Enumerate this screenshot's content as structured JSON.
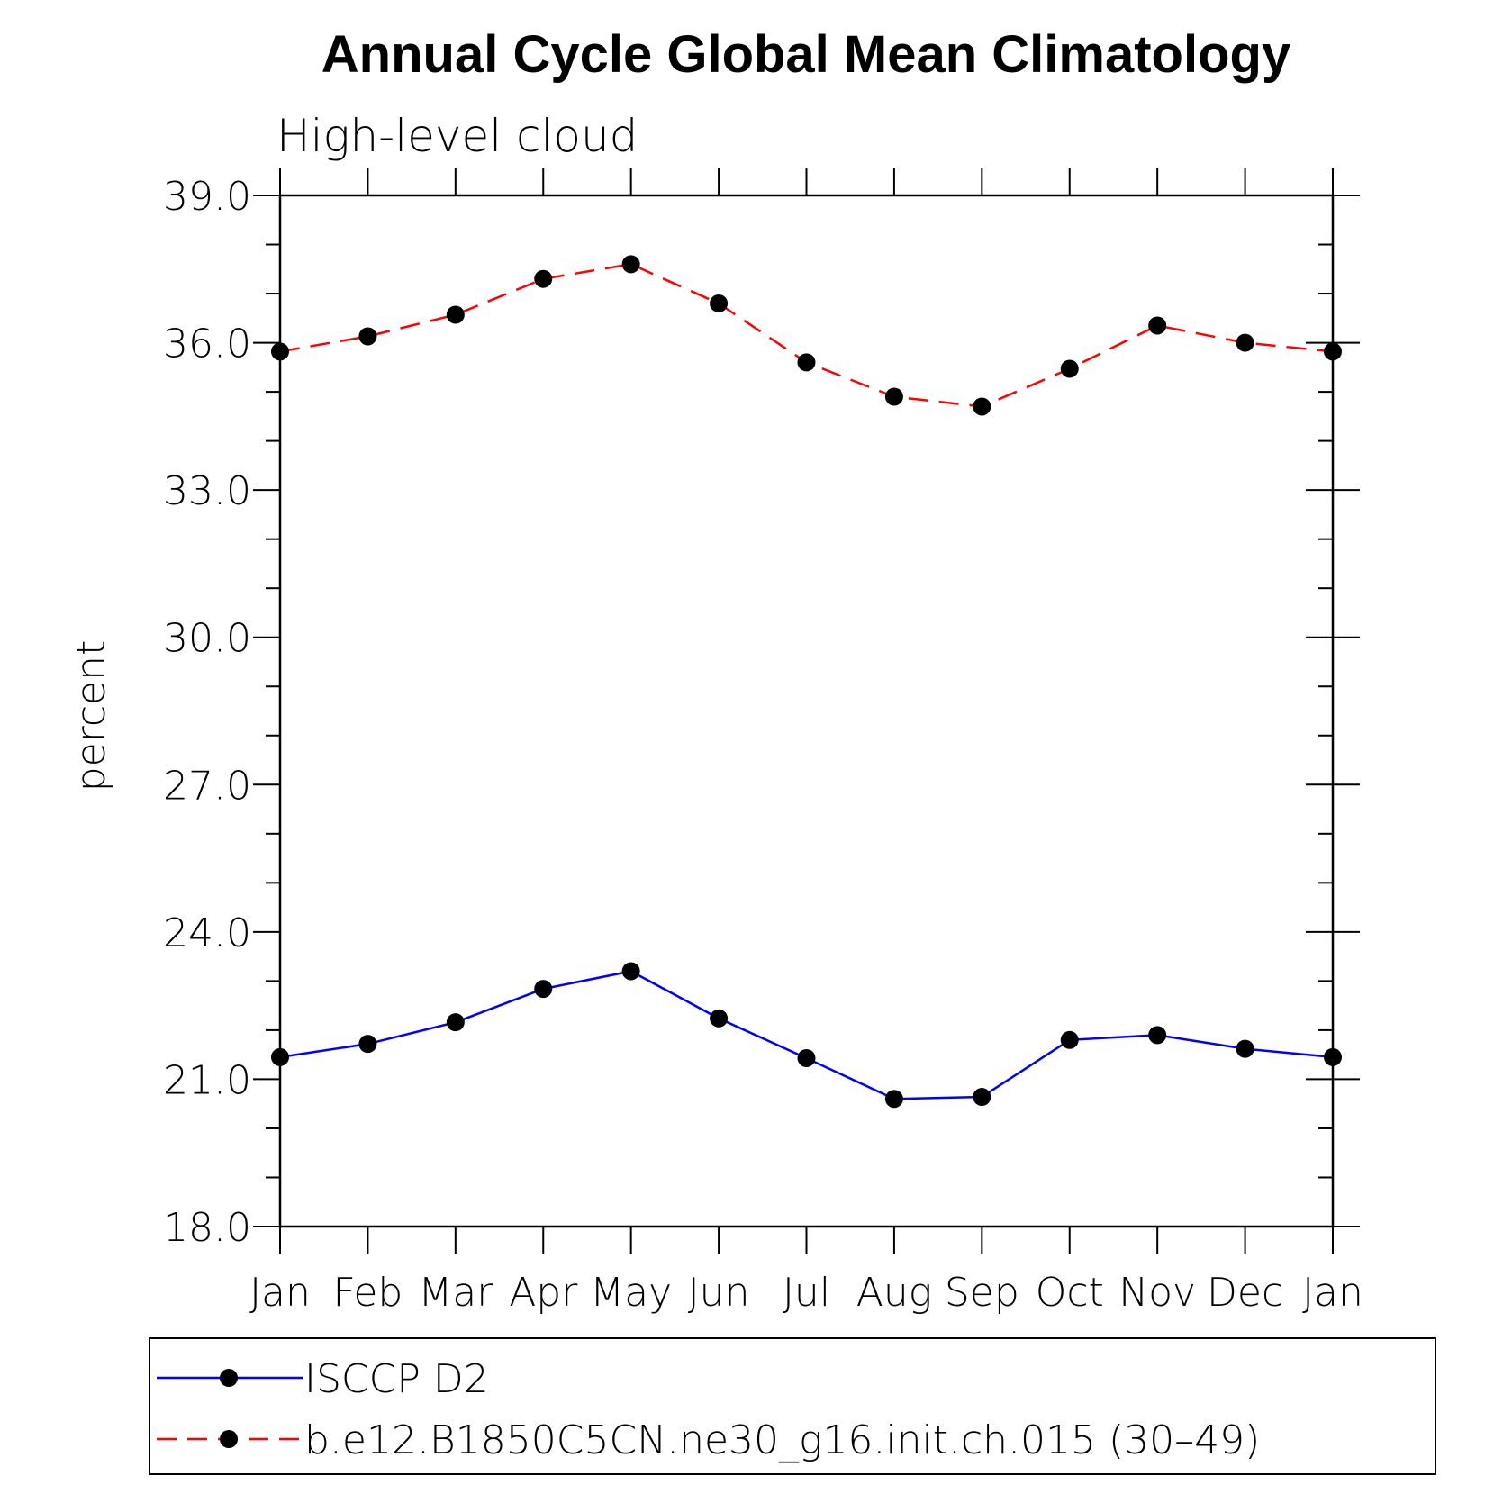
{
  "chart_data": {
    "type": "line",
    "title": "Annual Cycle Global Mean Climatology",
    "subtitle": "High-level cloud",
    "xlabel": "",
    "ylabel": "percent",
    "ylim": [
      18.0,
      39.0
    ],
    "yticks": [
      "18.0",
      "21.0",
      "24.0",
      "27.0",
      "30.0",
      "33.0",
      "36.0",
      "39.0"
    ],
    "categories": [
      "Jan",
      "Feb",
      "Mar",
      "Apr",
      "May",
      "Jun",
      "Jul",
      "Aug",
      "Sep",
      "Oct",
      "Nov",
      "Dec",
      "Jan"
    ],
    "grid": false,
    "legend_position": "bottom",
    "series": [
      {
        "name": "ISCCP D2",
        "color": "#0000ff",
        "dash": "solid",
        "marker": "circle",
        "values": [
          21.45,
          21.72,
          22.16,
          22.84,
          23.2,
          22.24,
          21.43,
          20.6,
          20.64,
          21.8,
          21.9,
          21.62,
          21.45
        ]
      },
      {
        "name": "b.e12.B1850C5CN.ne30_g16.init.ch.015 (30–49)",
        "color": "#ff0000",
        "dash": "dashed",
        "marker": "circle",
        "values": [
          35.82,
          36.13,
          36.57,
          37.3,
          37.6,
          36.8,
          35.6,
          34.9,
          34.7,
          35.47,
          36.35,
          36.0,
          35.82
        ]
      }
    ]
  }
}
